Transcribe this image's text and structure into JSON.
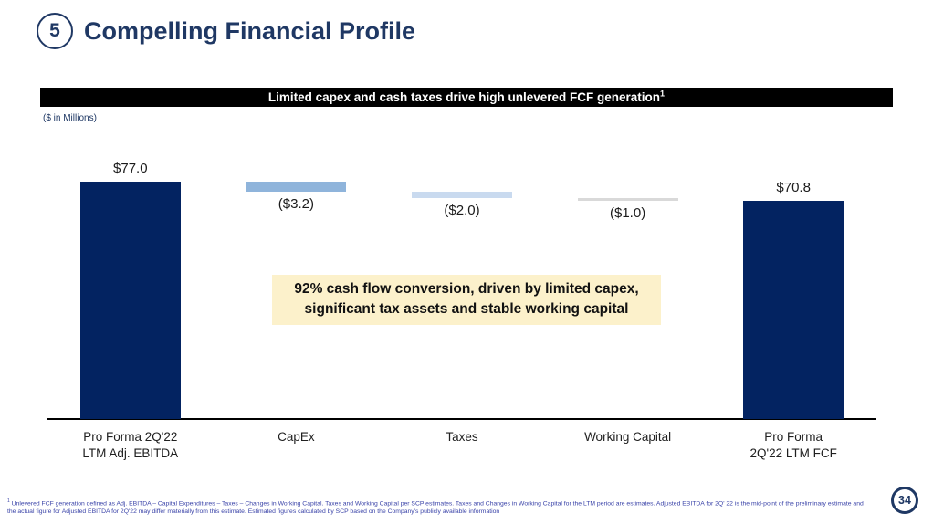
{
  "header": {
    "section_number": "5",
    "title": "Compelling Financial Profile"
  },
  "banner": {
    "text": "Limited capex and cash taxes drive high unlevered FCF generation",
    "footnote_marker": "1"
  },
  "callout": {
    "text": "92% cash flow conversion, driven by limited capex,\nsignificant tax assets and stable working capital"
  },
  "footnote": {
    "marker": "1",
    "text": "Unlevered FCF generation defined as Adj. EBITDA – Capital Expenditures – Taxes – Changes in Working Capital. Taxes and Working Capital per SCP estimates. Taxes and Changes in Working Capital for the LTM period are estimates. Adjusted EBITDA for 2Q' 22 is the mid-point of the preliminary estimate and the actual figure for Adjusted EBITDA for 2Q'22 may differ materially from this estimate. Estimated figures calculated by SCP based on the Company's publicly available information"
  },
  "footer": {
    "page_number": "34"
  },
  "chart_data": {
    "type": "waterfall",
    "title": "Limited capex and cash taxes drive high unlevered FCF generation",
    "units_label": "($ in Millions)",
    "categories": [
      "Pro Forma 2Q'22\nLTM Adj. EBITDA",
      "CapEx",
      "Taxes",
      "Working Capital",
      "Pro Forma\n2Q'22 LTM FCF"
    ],
    "values": [
      77.0,
      -3.2,
      -2.0,
      -1.0,
      70.8
    ],
    "cumulative_start": [
      0,
      77.0,
      73.8,
      71.8,
      0
    ],
    "cumulative_end": [
      77.0,
      73.8,
      71.8,
      70.8,
      70.8
    ],
    "bar_labels": [
      "$77.0",
      "($3.2)",
      "($2.0)",
      "($1.0)",
      "$70.8"
    ],
    "label_positions": [
      "above",
      "below",
      "below",
      "below",
      "above"
    ],
    "bar_colors": [
      "#032361",
      "#8FB4DB",
      "#C9DAEF",
      "#D9D9D9",
      "#032361"
    ],
    "ylim": [
      0,
      77
    ],
    "grid": false,
    "legend": false,
    "axis_color": "#000000"
  }
}
